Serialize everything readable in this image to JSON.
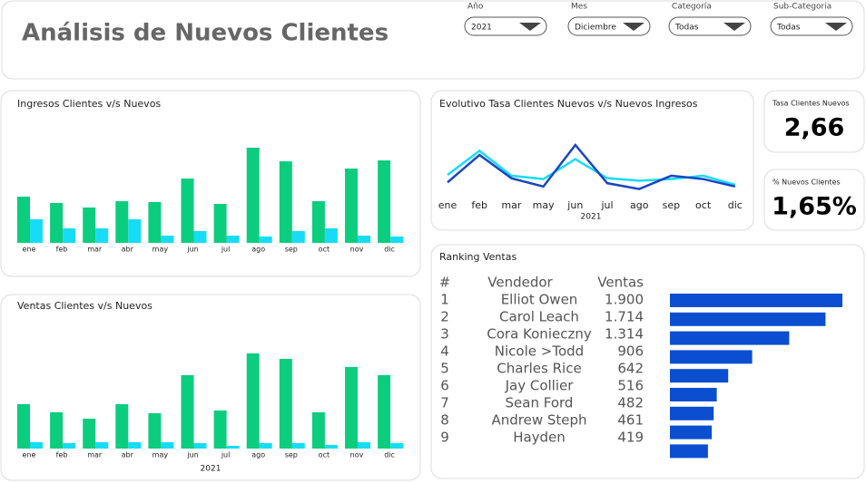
{
  "header": {
    "title": "Análisis de Nuevos Clientes"
  },
  "filters": [
    {
      "label": "Año",
      "value": "2021"
    },
    {
      "label": "Mes",
      "value": "Diciembre"
    },
    {
      "label": "Categoría",
      "value": "Todas"
    },
    {
      "label": "Sub-Categoria",
      "value": "Todas"
    }
  ],
  "kpis": [
    {
      "label": "Tasa Clientes Nuevos",
      "value": "2,66"
    },
    {
      "label": "% Nuevos Clientes",
      "value": "1,65%"
    }
  ],
  "chart_data": [
    {
      "type": "bar",
      "title": "Ingresos Clientes v/s Nuevos",
      "categories": [
        "ene",
        "feb",
        "mar",
        "abr",
        "may",
        "jun",
        "jul",
        "ago",
        "sep",
        "oct",
        "nov",
        "dic"
      ],
      "series": [
        {
          "color": "#0ccd7e",
          "values": [
            51,
            44,
            39,
            46,
            45,
            71,
            43,
            105,
            90,
            46,
            82,
            91
          ]
        },
        {
          "color": "#16dcf5",
          "values": [
            26,
            16,
            16,
            26,
            8,
            13,
            8,
            7,
            13,
            16,
            8,
            7
          ]
        }
      ]
    },
    {
      "type": "bar",
      "title": "Ventas Clientes v/s Nuevos",
      "x_label": "2021",
      "categories": [
        "ene",
        "feb",
        "mar",
        "abr",
        "may",
        "jun",
        "jul",
        "ago",
        "sep",
        "oct",
        "nov",
        "dic"
      ],
      "series": [
        {
          "color": "#0ccd7e",
          "values": [
            49,
            40,
            33,
            49,
            39,
            81,
            42,
            105,
            99,
            40,
            90,
            81
          ]
        },
        {
          "color": "#16dcf5",
          "values": [
            7,
            6,
            7,
            7,
            7,
            6,
            3,
            6,
            6,
            4,
            7,
            6
          ]
        }
      ]
    },
    {
      "type": "line",
      "title": "Evolutivo Tasa Clientes Nuevos  v/s Nuevos Ingresos",
      "x_label": "2021",
      "categories": [
        "ene",
        "feb",
        "mar",
        "may",
        "jun",
        "jul",
        "ago",
        "sep",
        "oct",
        "dic"
      ],
      "series": [
        {
          "color": "#16dcf5",
          "values": [
            24,
            53,
            23,
            19,
            43,
            20,
            17,
            19,
            23,
            12
          ]
        },
        {
          "color": "#1a46bf",
          "values": [
            15,
            48,
            20,
            10,
            60,
            14,
            7,
            23,
            19,
            10
          ]
        }
      ]
    },
    {
      "type": "hbar",
      "title": "Ranking Ventas",
      "columns": [
        "#",
        "Vendedor",
        "Ventas"
      ],
      "ranks": [
        1,
        2,
        3,
        4,
        5,
        6,
        7,
        8,
        9
      ],
      "categories": [
        "Elliot Owen",
        "Carol Leach",
        "Cora Konieczny",
        "Nicole >Todd",
        "Charles Rice",
        "Jay Collier",
        "Sean Ford",
        "Andrew Steph",
        "Hayden"
      ],
      "values": [
        1900,
        1714,
        1314,
        906,
        642,
        516,
        482,
        461,
        419
      ],
      "value_labels": [
        "1.900",
        "1.714",
        "1.314",
        "906",
        "642",
        "516",
        "482",
        "461",
        "419"
      ],
      "color": "#0b4fd0"
    }
  ]
}
